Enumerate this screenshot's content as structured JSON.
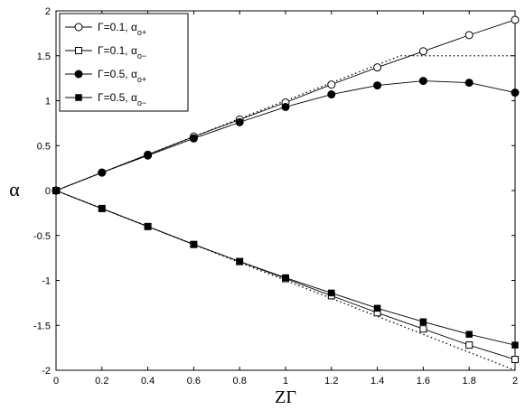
{
  "chart_data": {
    "type": "line",
    "xlabel": "ZΓ",
    "ylabel": "α",
    "xlim": [
      0,
      2
    ],
    "ylim": [
      -2,
      2
    ],
    "xticks": [
      "0",
      "0.2",
      "0.4",
      "0.6",
      "0.8",
      "1",
      "1.2",
      "1.4",
      "1.6",
      "1.8",
      "2"
    ],
    "yticks": [
      "-2",
      "-1.5",
      "-1",
      "-0.5",
      "0",
      "0.5",
      "1",
      "1.5",
      "2"
    ],
    "grid": false,
    "legend_position": "top-left",
    "series": [
      {
        "name": "Γ=0.1, α_o+",
        "label_main": "Γ=0.1, α",
        "label_sub": "o+",
        "marker": "open-circle",
        "x": [
          0,
          0.2,
          0.4,
          0.6,
          0.8,
          1.0,
          1.2,
          1.4,
          1.6,
          1.8,
          2.0
        ],
        "values": [
          0,
          0.2,
          0.4,
          0.6,
          0.79,
          0.98,
          1.18,
          1.37,
          1.55,
          1.73,
          1.9
        ]
      },
      {
        "name": "Γ=0.1, α_o−",
        "label_main": "Γ=0.1, α",
        "label_sub": "o−",
        "marker": "open-square",
        "x": [
          0,
          0.2,
          0.4,
          0.6,
          0.8,
          1.0,
          1.2,
          1.4,
          1.6,
          1.8,
          2.0
        ],
        "values": [
          0,
          -0.2,
          -0.4,
          -0.6,
          -0.79,
          -0.98,
          -1.17,
          -1.36,
          -1.54,
          -1.72,
          -1.88
        ]
      },
      {
        "name": "Γ=0.5, α_o+",
        "label_main": "Γ=0.5, α",
        "label_sub": "o+",
        "marker": "filled-circle",
        "x": [
          0,
          0.2,
          0.4,
          0.6,
          0.8,
          1.0,
          1.2,
          1.4,
          1.6,
          1.8,
          2.0
        ],
        "values": [
          0,
          0.2,
          0.39,
          0.58,
          0.76,
          0.93,
          1.07,
          1.17,
          1.22,
          1.2,
          1.09
        ]
      },
      {
        "name": "Γ=0.5, α_o−",
        "label_main": "Γ=0.5, α",
        "label_sub": "o−",
        "marker": "filled-square",
        "x": [
          0,
          0.2,
          0.4,
          0.6,
          0.8,
          1.0,
          1.2,
          1.4,
          1.6,
          1.8,
          2.0
        ],
        "values": [
          0,
          -0.2,
          -0.4,
          -0.6,
          -0.79,
          -0.97,
          -1.14,
          -1.31,
          -1.46,
          -1.6,
          -1.72
        ]
      }
    ],
    "reference_lines": [
      {
        "style": "dotted",
        "x": [
          0,
          1.5,
          1.6,
          2.0
        ],
        "values": [
          0,
          1.5,
          1.5,
          1.5
        ]
      },
      {
        "style": "dotted",
        "x": [
          0,
          2.0
        ],
        "values": [
          0,
          -2.0
        ]
      }
    ]
  }
}
